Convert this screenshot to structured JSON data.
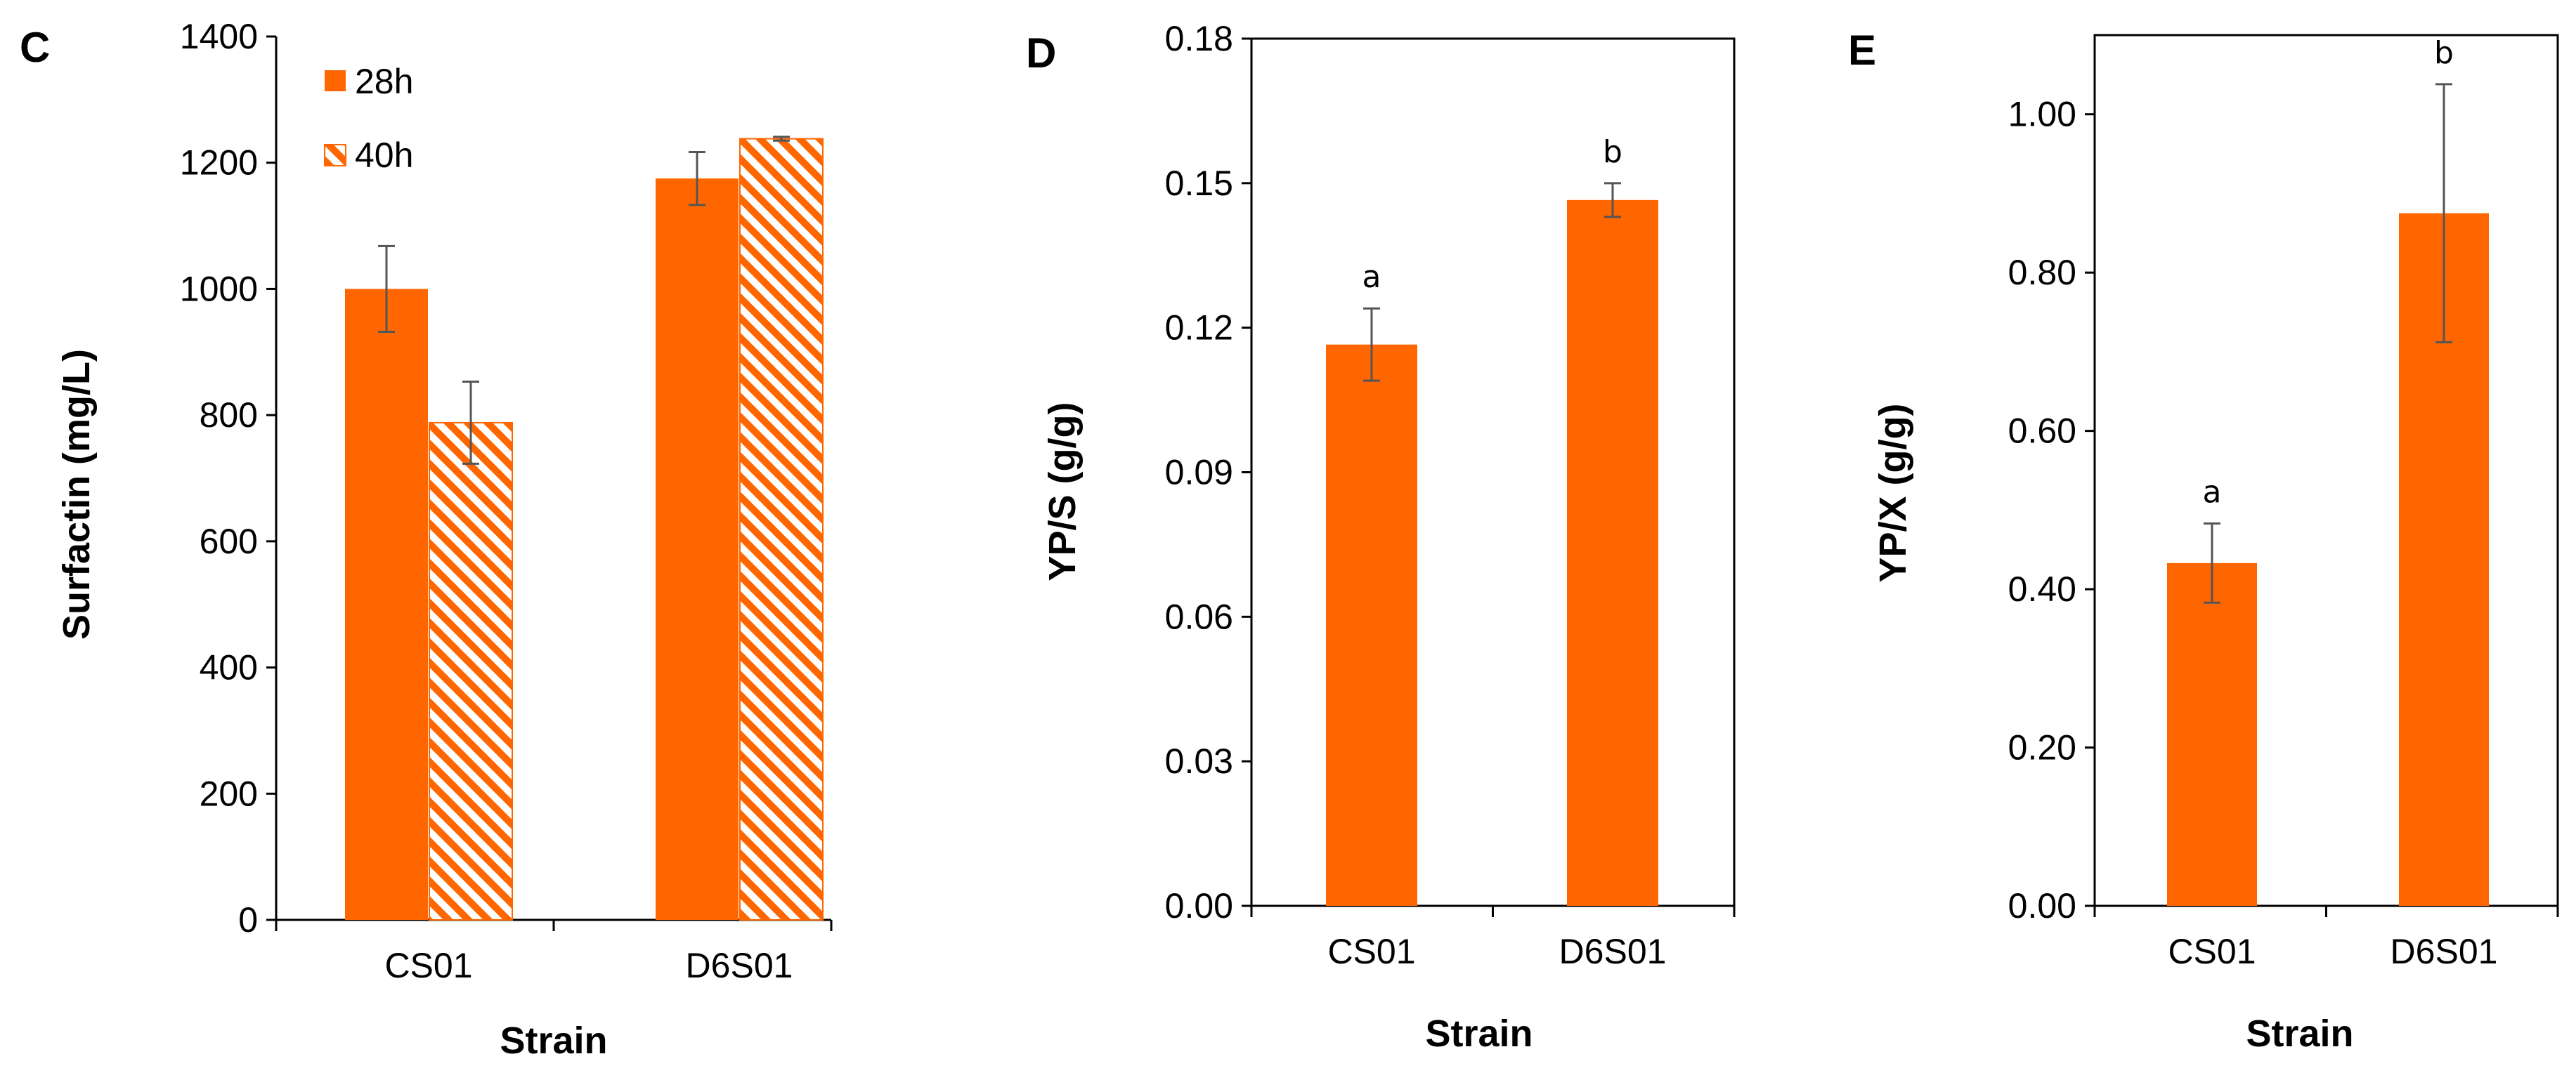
{
  "colors": {
    "bar": "#ff6600",
    "error": "#555555",
    "axis": "#000000",
    "hatch_bg": "#ffffff"
  },
  "chart_data": [
    {
      "panel": "C",
      "type": "bar",
      "title": "",
      "xlabel": "Strain",
      "ylabel": "Surfactin (mg/L)",
      "categories": [
        "CS01",
        "D6S01"
      ],
      "ylim": [
        0,
        1400
      ],
      "yticks": [
        "0",
        "200",
        "400",
        "600",
        "800",
        "1000",
        "1200",
        "1400"
      ],
      "yticks_values": [
        0,
        200,
        400,
        600,
        800,
        1000,
        1200,
        1400
      ],
      "legend_position": "top-left",
      "series": [
        {
          "name": "28h",
          "pattern": "solid",
          "values": [
            1000,
            1175
          ],
          "errors": [
            68,
            42
          ]
        },
        {
          "name": "40h",
          "pattern": "hatched",
          "values": [
            788,
            1238
          ],
          "errors": [
            65,
            3
          ]
        }
      ]
    },
    {
      "panel": "D",
      "type": "bar",
      "title": "",
      "xlabel": "Strain",
      "ylabel": "YP/S (g/g)",
      "categories": [
        "CS01",
        "D6S01"
      ],
      "ylim": [
        0,
        0.18
      ],
      "yticks": [
        "0.00",
        "0.03",
        "0.06",
        "0.09",
        "0.12",
        "0.15",
        "0.18"
      ],
      "yticks_values": [
        0,
        0.03,
        0.06,
        0.09,
        0.12,
        0.15,
        0.18
      ],
      "series": [
        {
          "name": "",
          "pattern": "solid",
          "values": [
            0.1165,
            0.1465
          ],
          "errors": [
            0.0075,
            0.0035
          ],
          "labels": [
            "a",
            "b"
          ]
        }
      ]
    },
    {
      "panel": "E",
      "type": "bar",
      "title": "",
      "xlabel": "Strain",
      "ylabel": "YP/X (g/g)",
      "categories": [
        "CS01",
        "D6S01"
      ],
      "ylim": [
        0,
        1.1
      ],
      "yticks": [
        "0.00",
        "0.20",
        "0.40",
        "0.60",
        "0.80",
        "1.00"
      ],
      "yticks_values": [
        0,
        0.2,
        0.4,
        0.6,
        0.8,
        1.0
      ],
      "series": [
        {
          "name": "",
          "pattern": "solid",
          "values": [
            0.433,
            0.875
          ],
          "errors": [
            0.05,
            0.163
          ],
          "labels": [
            "a",
            "b"
          ]
        }
      ]
    }
  ]
}
